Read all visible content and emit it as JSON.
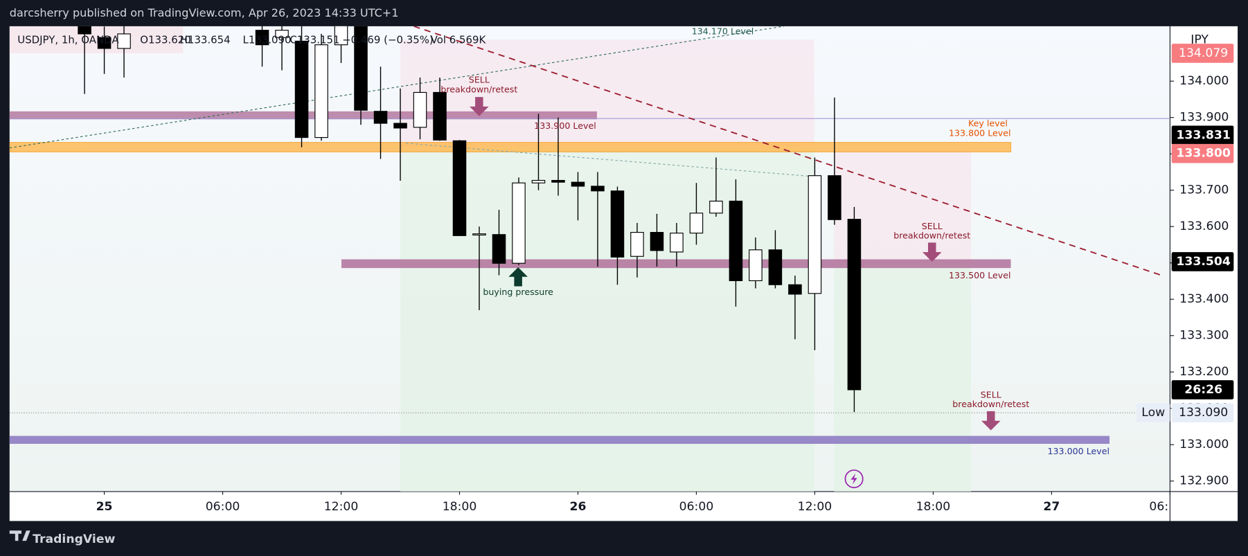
{
  "header": {
    "publisher": "darcsherry published on TradingView.com, Apr 26, 2023 14:33 UTC+1"
  },
  "chart_data": {
    "type": "candlestick",
    "symbol_info": "USDJPY, 1h, OANDA",
    "ohlc_header": [
      "O133.620",
      "H133.654",
      "L133.090",
      "C133.151",
      "−0.469 (−0.35%)",
      "Vol 6.569K"
    ],
    "currency": "JPY",
    "x": [
      -1,
      0,
      1,
      8,
      9,
      10,
      11,
      12,
      13,
      14,
      15,
      16,
      17,
      18,
      19,
      20,
      21,
      22,
      23,
      24,
      25,
      26,
      27,
      28,
      29,
      30,
      31,
      32,
      33,
      34,
      35,
      36,
      37,
      38
    ],
    "open": [
      134.2,
      134.12,
      134.09,
      134.14,
      134.12,
      134.11,
      133.845,
      134.1,
      134.2,
      133.917,
      133.884,
      133.873,
      133.969,
      133.836,
      133.578,
      133.578,
      133.499,
      133.72,
      133.727,
      133.722,
      133.711,
      133.698,
      133.518,
      133.584,
      133.53,
      133.582,
      133.637,
      133.67,
      133.451,
      133.536,
      133.44,
      133.416,
      133.74,
      133.62
    ],
    "high": [
      134.25,
      134.15,
      134.16,
      134.2,
      134.2,
      134.2,
      134.13,
      134.3,
      134.3,
      134.04,
      133.98,
      134.01,
      134.01,
      133.838,
      133.6,
      133.646,
      133.735,
      133.91,
      133.9,
      133.75,
      133.75,
      133.71,
      133.61,
      133.635,
      133.61,
      133.72,
      133.79,
      133.73,
      133.57,
      133.59,
      133.465,
      133.79,
      133.955,
      133.654
    ],
    "low": [
      133.965,
      134.02,
      134.01,
      134.04,
      134.03,
      133.818,
      133.836,
      134.05,
      133.88,
      133.786,
      133.726,
      133.84,
      133.836,
      133.575,
      133.37,
      133.466,
      133.494,
      133.7,
      133.685,
      133.617,
      133.49,
      133.44,
      133.46,
      133.49,
      133.49,
      133.55,
      133.627,
      133.38,
      133.43,
      133.43,
      133.29,
      133.26,
      133.605,
      133.09
    ],
    "close": [
      134.13,
      134.09,
      134.13,
      134.1,
      134.14,
      133.845,
      134.1,
      134.22,
      133.92,
      133.884,
      133.871,
      133.969,
      133.838,
      133.575,
      133.58,
      133.499,
      133.72,
      133.727,
      133.722,
      133.711,
      133.698,
      133.516,
      133.584,
      133.534,
      133.582,
      133.637,
      133.67,
      133.451,
      133.536,
      133.44,
      133.414,
      133.74,
      133.619,
      133.151
    ],
    "up_color": "#ffffff",
    "down_color": "#000000",
    "xlim": [
      -4.8,
      54
    ],
    "xticks": [
      {
        "value": 0,
        "label": "25"
      },
      {
        "value": 6,
        "label": "06:00"
      },
      {
        "value": 12,
        "label": "12:00"
      },
      {
        "value": 18,
        "label": "18:00"
      },
      {
        "value": 24,
        "label": "26"
      },
      {
        "value": 30,
        "label": "06:00"
      },
      {
        "value": 36,
        "label": "12:00"
      },
      {
        "value": 42,
        "label": "18:00"
      },
      {
        "value": 48,
        "label": "27"
      },
      {
        "value": 54,
        "label": "06:"
      }
    ],
    "ylim": [
      132.871,
      134.151
    ],
    "yticks": [
      {
        "value": 132.9,
        "label": "132.900"
      },
      {
        "value": 133.0,
        "label": "133.000"
      },
      {
        "value": 133.1,
        "label": "133.100"
      },
      {
        "value": 133.2,
        "label": "133.200"
      },
      {
        "value": 133.3,
        "label": "133.300"
      },
      {
        "value": 133.4,
        "label": "133.400"
      },
      {
        "value": 133.5,
        "label": "133.500"
      },
      {
        "value": 133.6,
        "label": "133.600"
      },
      {
        "value": 133.7,
        "label": "133.700"
      },
      {
        "value": 133.8,
        "label": "133.800"
      },
      {
        "value": 133.9,
        "label": "133.900"
      },
      {
        "value": 134.0,
        "label": "134.000"
      }
    ],
    "annotations": [
      "134.170 Level",
      "SELL",
      "breakdown/retest",
      "133.900 Level",
      "Key level",
      "133.800 Level",
      "SELL",
      "breakdown/retest",
      "133.500 Level",
      "buying pressure",
      "SELL",
      "breakdown/retest",
      "133.000 Level"
    ],
    "price_labels": [
      "134.079",
      "133.831",
      "133.800",
      "133.504",
      "26:26",
      "Low",
      "133.090"
    ]
  },
  "footer": {
    "brand": "TradingView"
  }
}
